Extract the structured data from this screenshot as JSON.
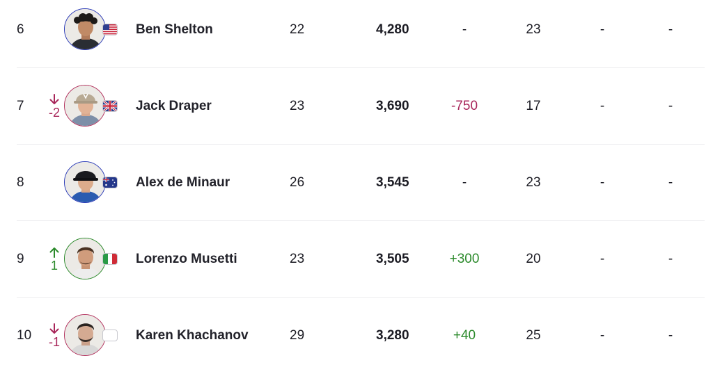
{
  "rows": [
    {
      "rank": "6",
      "move": {
        "dir": "none",
        "value": ""
      },
      "name": "Ben Shelton",
      "flag": "us-flag-icon",
      "age": "22",
      "points": "4,280",
      "change": "-",
      "change_type": "none",
      "tournaments": "23",
      "col_a": "-",
      "col_b": "-",
      "ring": "blue"
    },
    {
      "rank": "7",
      "move": {
        "dir": "down",
        "value": "-2"
      },
      "name": "Jack Draper",
      "flag": "gb-flag-icon",
      "age": "23",
      "points": "3,690",
      "change": "-750",
      "change_type": "neg",
      "tournaments": "17",
      "col_a": "-",
      "col_b": "-",
      "ring": "red"
    },
    {
      "rank": "8",
      "move": {
        "dir": "none",
        "value": ""
      },
      "name": "Alex de Minaur",
      "flag": "au-flag-icon",
      "age": "26",
      "points": "3,545",
      "change": "-",
      "change_type": "none",
      "tournaments": "23",
      "col_a": "-",
      "col_b": "-",
      "ring": "blue"
    },
    {
      "rank": "9",
      "move": {
        "dir": "up",
        "value": "1"
      },
      "name": "Lorenzo Musetti",
      "flag": "it-flag-icon",
      "age": "23",
      "points": "3,505",
      "change": "+300",
      "change_type": "pos",
      "tournaments": "20",
      "col_a": "-",
      "col_b": "-",
      "ring": "green"
    },
    {
      "rank": "10",
      "move": {
        "dir": "down",
        "value": "-1"
      },
      "name": "Karen Khachanov",
      "flag": "blank-flag-icon",
      "age": "29",
      "points": "3,280",
      "change": "+40",
      "change_type": "pos",
      "tournaments": "25",
      "col_a": "-",
      "col_b": "-",
      "ring": "red"
    }
  ],
  "colors": {
    "down": "#a8265a",
    "up": "#2b8a2b",
    "ring_blue": "#2b3bb8",
    "ring_red": "#b3335f",
    "ring_green": "#2b8a2b"
  }
}
